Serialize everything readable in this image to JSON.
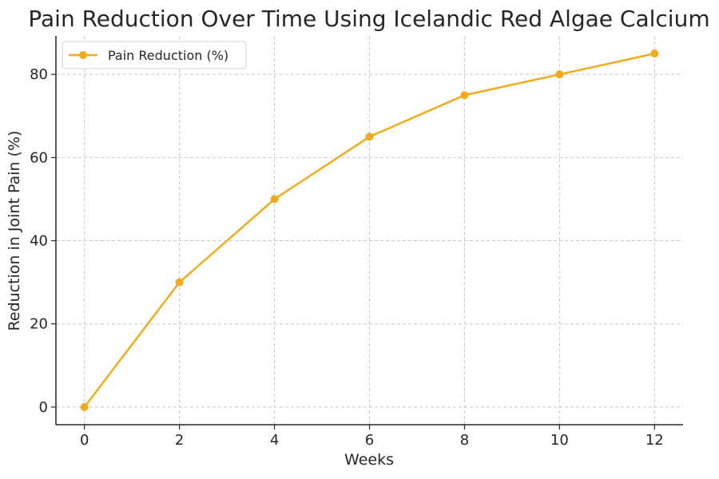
{
  "colors": {
    "series": "#f2ab1c",
    "text": "#262626",
    "grid": "#c8c8c8"
  },
  "chart_data": {
    "type": "line",
    "title": "Pain Reduction Over Time Using Icelandic Red Algae Calcium",
    "xlabel": "Weeks",
    "ylabel": "Reduction in Joint Pain (%)",
    "x": [
      0,
      2,
      4,
      6,
      8,
      10,
      12
    ],
    "series": [
      {
        "name": "Pain Reduction (%)",
        "values": [
          0,
          30,
          50,
          65,
          75,
          80,
          85
        ],
        "marker": "circle"
      }
    ],
    "xlim": [
      -0.6,
      12.6
    ],
    "ylim": [
      -4.25,
      89.25
    ],
    "xticks": [
      0,
      2,
      4,
      6,
      8,
      10,
      12
    ],
    "yticks": [
      0,
      20,
      40,
      60,
      80
    ],
    "grid": true,
    "legend_position": "top-left"
  }
}
